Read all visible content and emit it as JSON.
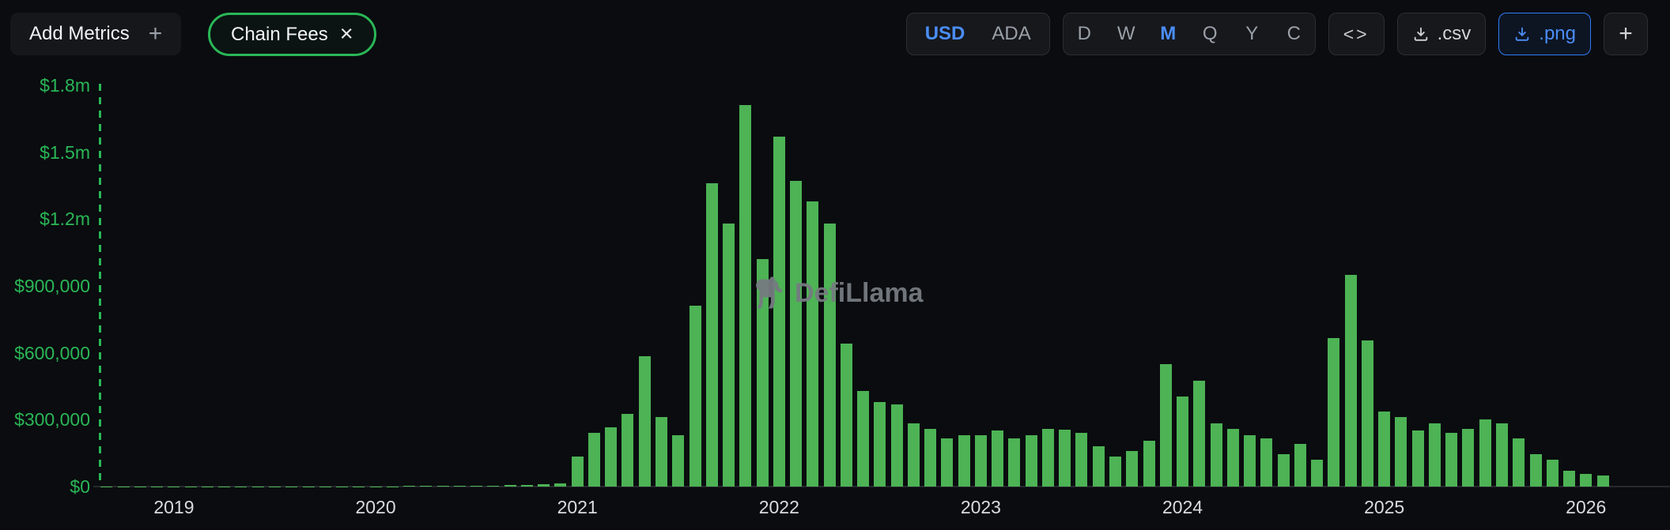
{
  "header": {
    "add_metrics": {
      "label": "Add Metrics",
      "plus": "+"
    },
    "metric_pill": {
      "label": "Chain Fees",
      "close_icon": "×"
    },
    "currency_toggle": {
      "options": [
        "USD",
        "ADA"
      ],
      "selected": "USD"
    },
    "interval_toggle": {
      "options": [
        "D",
        "W",
        "M",
        "Q",
        "Y",
        "C"
      ],
      "selected": "M"
    },
    "embed_button": {
      "label": "<>"
    },
    "csv_button": {
      "label": ".csv"
    },
    "png_button": {
      "label": ".png"
    },
    "add_chart_button": {
      "label": "+"
    }
  },
  "watermark": {
    "label": "DefiLlama"
  },
  "colors": {
    "page_bg": "#0a0c0f",
    "panel_bg": "#16181c",
    "panel_border": "#2b2e33",
    "accent_green": "#2ab757",
    "bar_green": "#4db355",
    "accent_blue": "#4b8df8",
    "blue_border": "#2e7cf6",
    "text_primary": "#f2f3f5",
    "text_muted": "#9aa0a8",
    "axis_text": "#d9dbdd",
    "watermark_gray": "#767b81",
    "baseline_color": "#26292d"
  },
  "chart_data": {
    "type": "bar",
    "title": "Chain Fees",
    "currency": "USD",
    "interval": "monthly",
    "legend_position": "none",
    "grid": false,
    "ylim": [
      0,
      1800000
    ],
    "ytick_values": [
      0,
      300000,
      600000,
      900000,
      1200000,
      1500000,
      1800000
    ],
    "ytick_labels": [
      "$0",
      "$300,000",
      "$600,000",
      "$900,000",
      "$1.2m",
      "$1.5m",
      "$1.8m"
    ],
    "xtick_labels": [
      "2019",
      "2020",
      "2021",
      "2022",
      "2023",
      "2024",
      "2025",
      "2026"
    ],
    "x": [
      "2018-09",
      "2018-10",
      "2018-11",
      "2018-12",
      "2019-01",
      "2019-02",
      "2019-03",
      "2019-04",
      "2019-05",
      "2019-06",
      "2019-07",
      "2019-08",
      "2019-09",
      "2019-10",
      "2019-11",
      "2019-12",
      "2020-01",
      "2020-02",
      "2020-03",
      "2020-04",
      "2020-05",
      "2020-06",
      "2020-07",
      "2020-08",
      "2020-09",
      "2020-10",
      "2020-11",
      "2020-12",
      "2021-01",
      "2021-02",
      "2021-03",
      "2021-04",
      "2021-05",
      "2021-06",
      "2021-07",
      "2021-08",
      "2021-09",
      "2021-10",
      "2021-11",
      "2021-12",
      "2022-01",
      "2022-02",
      "2022-03",
      "2022-04",
      "2022-05",
      "2022-06",
      "2022-07",
      "2022-08",
      "2022-09",
      "2022-10",
      "2022-11",
      "2022-12",
      "2023-01",
      "2023-02",
      "2023-03",
      "2023-04",
      "2023-05",
      "2023-06",
      "2023-07",
      "2023-08",
      "2023-09",
      "2023-10",
      "2023-11",
      "2023-12",
      "2024-01",
      "2024-02",
      "2024-03",
      "2024-04",
      "2024-05",
      "2024-06",
      "2024-07",
      "2024-08",
      "2024-09",
      "2024-10",
      "2024-11",
      "2024-12",
      "2025-01",
      "2025-02",
      "2025-03",
      "2025-04",
      "2025-05",
      "2025-06",
      "2025-07",
      "2025-08",
      "2025-09",
      "2025-10",
      "2025-11",
      "2025-12",
      "2026-01",
      "2026-02"
    ],
    "values": [
      300,
      400,
      500,
      700,
      800,
      700,
      600,
      500,
      600,
      500,
      400,
      500,
      600,
      700,
      900,
      1200,
      1500,
      1800,
      2200,
      2000,
      2500,
      3000,
      3500,
      4500,
      6000,
      8000,
      10000,
      14000,
      135000,
      240000,
      265000,
      325000,
      585000,
      310000,
      230000,
      810000,
      1360000,
      1180000,
      1710000,
      1020000,
      1570000,
      1370000,
      1280000,
      1180000,
      640000,
      430000,
      380000,
      370000,
      285000,
      260000,
      215000,
      230000,
      230000,
      250000,
      215000,
      230000,
      260000,
      255000,
      240000,
      180000,
      135000,
      160000,
      205000,
      550000,
      405000,
      475000,
      285000,
      260000,
      230000,
      215000,
      145000,
      190000,
      120000,
      665000,
      950000,
      655000,
      335000,
      310000,
      250000,
      285000,
      240000,
      260000,
      300000,
      285000,
      215000,
      145000,
      120000,
      70000,
      57000,
      48000
    ]
  }
}
